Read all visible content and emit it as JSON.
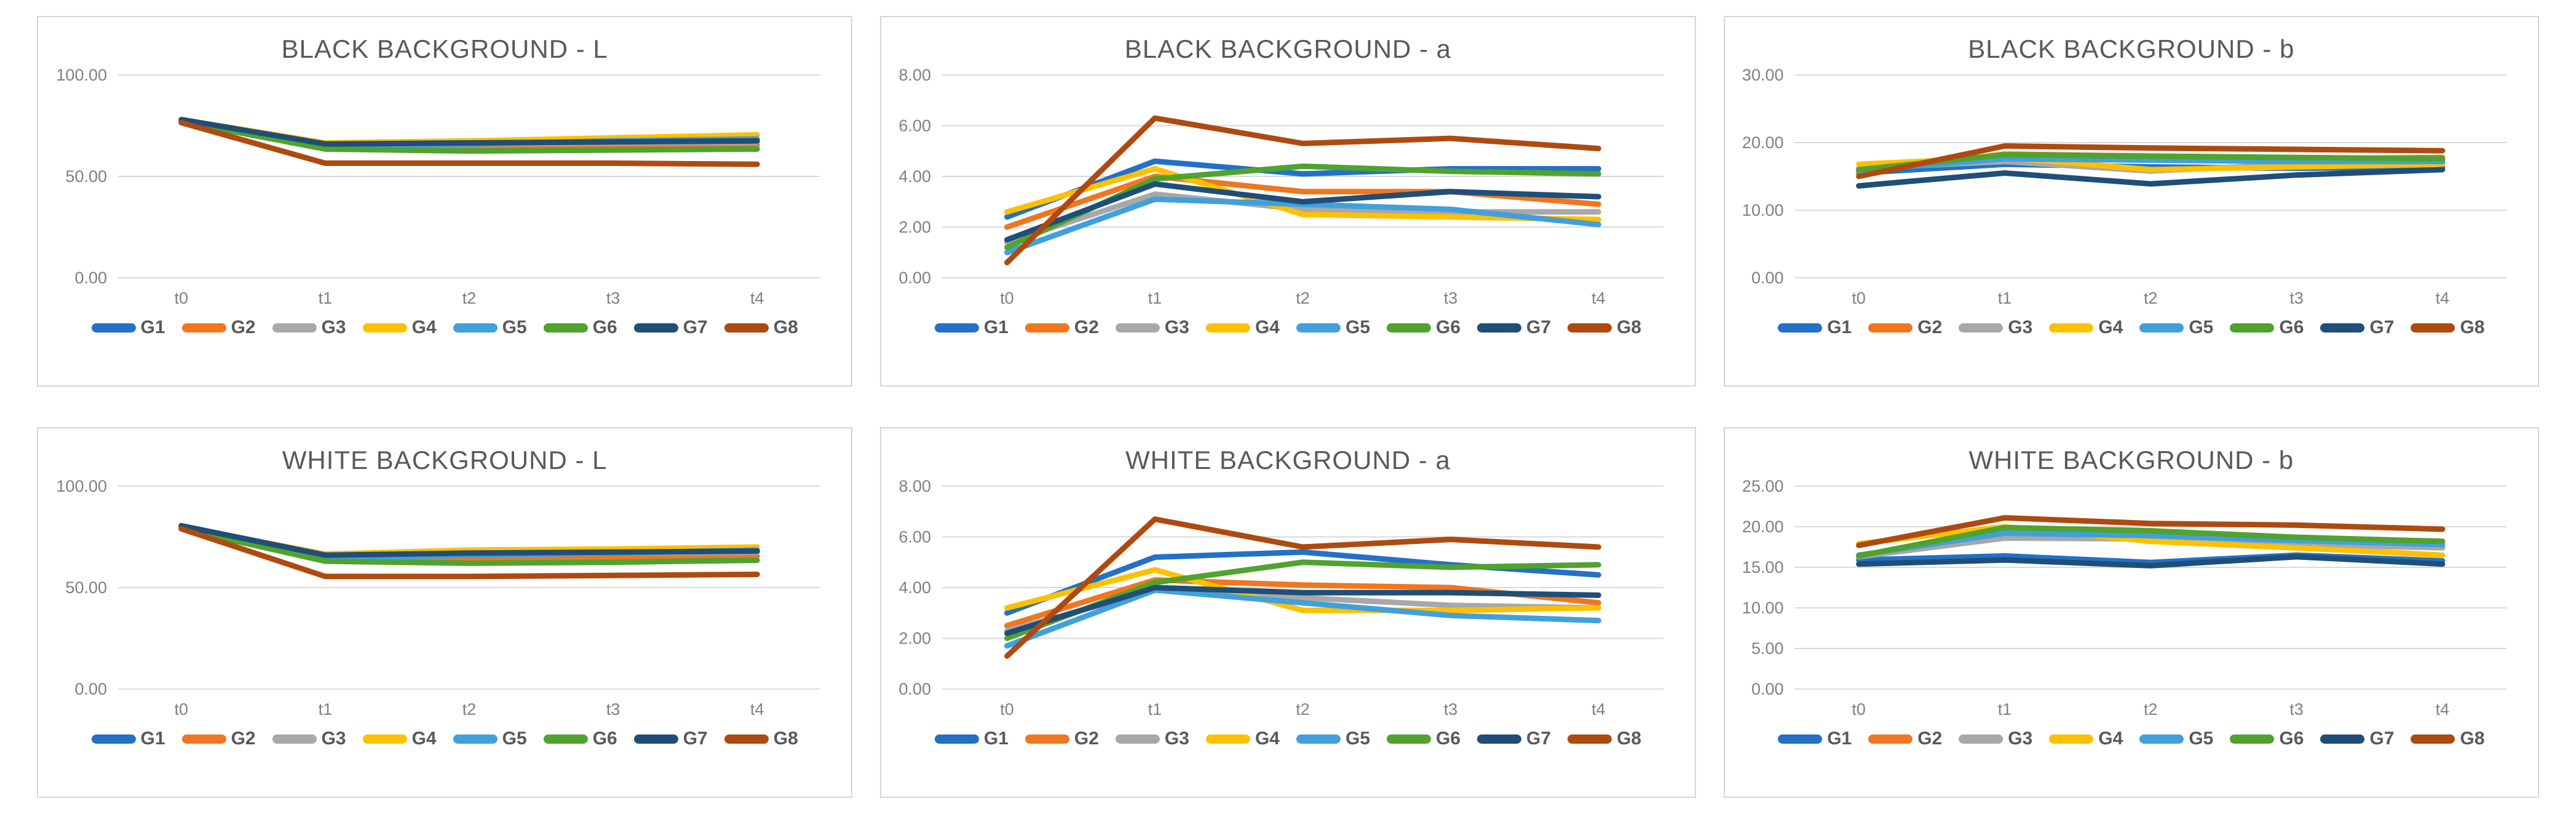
{
  "style": {
    "grid_color": "#d9d9d9",
    "tick_color": "#808080",
    "title_color": "#595959",
    "panel_border": "#d6d6d6"
  },
  "palette": {
    "G1": "#2271c7",
    "G2": "#f0761f",
    "G3": "#a8a8a8",
    "G4": "#ffc000",
    "G5": "#41a0dc",
    "G6": "#4fa32e",
    "G7": "#1f4e79",
    "G8": "#ae4a10"
  },
  "chart_data": [
    {
      "type": "line",
      "title": "BLACK BACKGROUND - L",
      "x_categories": [
        "t0",
        "t1",
        "t2",
        "t3",
        "t4"
      ],
      "ylim": [
        0,
        100
      ],
      "yticks": [
        {
          "v": 0,
          "l": "0.00"
        },
        {
          "v": 50,
          "l": "50.00"
        },
        {
          "v": 100,
          "l": "100.00"
        }
      ],
      "grid": true,
      "legend_position": "bottom",
      "series": [
        {
          "name": "G1",
          "values": [
            77.5,
            66.0,
            66.5,
            67.0,
            68.0
          ]
        },
        {
          "name": "G2",
          "values": [
            77.0,
            64.5,
            64.5,
            65.0,
            65.5
          ]
        },
        {
          "name": "G3",
          "values": [
            77.5,
            65.5,
            66.0,
            66.5,
            67.0
          ]
        },
        {
          "name": "G4",
          "values": [
            78.0,
            66.5,
            67.5,
            69.0,
            70.5
          ]
        },
        {
          "name": "G5",
          "values": [
            77.0,
            65.0,
            66.0,
            67.5,
            68.5
          ]
        },
        {
          "name": "G6",
          "values": [
            77.0,
            63.5,
            62.5,
            63.0,
            63.5
          ]
        },
        {
          "name": "G7",
          "values": [
            78.0,
            66.0,
            66.5,
            67.0,
            67.5
          ]
        },
        {
          "name": "G8",
          "values": [
            76.5,
            56.5,
            56.5,
            56.5,
            56.0
          ]
        }
      ]
    },
    {
      "type": "line",
      "title": "BLACK BACKGROUND - a",
      "x_categories": [
        "t0",
        "t1",
        "t2",
        "t3",
        "t4"
      ],
      "ylim": [
        0,
        8
      ],
      "yticks": [
        {
          "v": 0,
          "l": "0.00"
        },
        {
          "v": 2,
          "l": "2.00"
        },
        {
          "v": 4,
          "l": "4.00"
        },
        {
          "v": 6,
          "l": "6.00"
        },
        {
          "v": 8,
          "l": "8.00"
        }
      ],
      "grid": true,
      "legend_position": "bottom",
      "series": [
        {
          "name": "G1",
          "values": [
            2.4,
            4.6,
            4.1,
            4.3,
            4.3
          ]
        },
        {
          "name": "G2",
          "values": [
            2.0,
            4.0,
            3.4,
            3.4,
            2.9
          ]
        },
        {
          "name": "G3",
          "values": [
            1.4,
            3.3,
            2.7,
            2.6,
            2.6
          ]
        },
        {
          "name": "G4",
          "values": [
            2.6,
            4.3,
            2.5,
            2.4,
            2.3
          ]
        },
        {
          "name": "G5",
          "values": [
            1.0,
            3.1,
            2.9,
            2.7,
            2.1
          ]
        },
        {
          "name": "G6",
          "values": [
            1.2,
            3.9,
            4.4,
            4.2,
            4.1
          ]
        },
        {
          "name": "G7",
          "values": [
            1.5,
            3.7,
            3.0,
            3.4,
            3.2
          ]
        },
        {
          "name": "G8",
          "values": [
            0.6,
            6.3,
            5.3,
            5.5,
            5.1
          ]
        }
      ]
    },
    {
      "type": "line",
      "title": "BLACK BACKGROUND - b",
      "x_categories": [
        "t0",
        "t1",
        "t2",
        "t3",
        "t4"
      ],
      "ylim": [
        0,
        30
      ],
      "yticks": [
        {
          "v": 0,
          "l": "0.00"
        },
        {
          "v": 10,
          "l": "10.00"
        },
        {
          "v": 20,
          "l": "20.00"
        },
        {
          "v": 30,
          "l": "30.00"
        }
      ],
      "grid": true,
      "legend_position": "bottom",
      "series": [
        {
          "name": "G1",
          "values": [
            15.5,
            16.8,
            16.4,
            16.2,
            16.4
          ]
        },
        {
          "name": "G2",
          "values": [
            15.7,
            18.3,
            18.0,
            17.6,
            17.8
          ]
        },
        {
          "name": "G3",
          "values": [
            16.2,
            17.2,
            15.8,
            16.8,
            17.4
          ]
        },
        {
          "name": "G4",
          "values": [
            16.8,
            17.8,
            16.0,
            16.4,
            16.8
          ]
        },
        {
          "name": "G5",
          "values": [
            15.9,
            17.6,
            17.4,
            17.2,
            17.2
          ]
        },
        {
          "name": "G6",
          "values": [
            16.0,
            18.2,
            18.0,
            17.8,
            17.6
          ]
        },
        {
          "name": "G7",
          "values": [
            13.6,
            15.5,
            13.9,
            15.2,
            16.0
          ]
        },
        {
          "name": "G8",
          "values": [
            15.0,
            19.5,
            19.2,
            19.0,
            18.8
          ]
        }
      ]
    },
    {
      "type": "line",
      "title": "WHITE BACKGROUND - L",
      "x_categories": [
        "t0",
        "t1",
        "t2",
        "t3",
        "t4"
      ],
      "ylim": [
        0,
        100
      ],
      "yticks": [
        {
          "v": 0,
          "l": "0.00"
        },
        {
          "v": 50,
          "l": "50.00"
        },
        {
          "v": 100,
          "l": "100.00"
        }
      ],
      "grid": true,
      "legend_position": "bottom",
      "series": [
        {
          "name": "G1",
          "values": [
            80.0,
            65.5,
            67.0,
            67.5,
            68.0
          ]
        },
        {
          "name": "G2",
          "values": [
            79.5,
            64.0,
            64.5,
            65.0,
            65.5
          ]
        },
        {
          "name": "G3",
          "values": [
            80.5,
            66.0,
            66.5,
            67.0,
            67.5
          ]
        },
        {
          "name": "G4",
          "values": [
            80.0,
            66.5,
            68.5,
            69.0,
            70.0
          ]
        },
        {
          "name": "G5",
          "values": [
            79.5,
            64.5,
            66.0,
            67.0,
            68.5
          ]
        },
        {
          "name": "G6",
          "values": [
            79.0,
            63.0,
            62.0,
            62.5,
            63.5
          ]
        },
        {
          "name": "G7",
          "values": [
            80.5,
            66.0,
            67.0,
            67.5,
            68.0
          ]
        },
        {
          "name": "G8",
          "values": [
            79.0,
            55.5,
            55.5,
            56.0,
            56.5
          ]
        }
      ]
    },
    {
      "type": "line",
      "title": "WHITE BACKGROUND - a",
      "x_categories": [
        "t0",
        "t1",
        "t2",
        "t3",
        "t4"
      ],
      "ylim": [
        0,
        8
      ],
      "yticks": [
        {
          "v": 0,
          "l": "0.00"
        },
        {
          "v": 2,
          "l": "2.00"
        },
        {
          "v": 4,
          "l": "4.00"
        },
        {
          "v": 6,
          "l": "6.00"
        },
        {
          "v": 8,
          "l": "8.00"
        }
      ],
      "grid": true,
      "legend_position": "bottom",
      "series": [
        {
          "name": "G1",
          "values": [
            3.0,
            5.2,
            5.4,
            4.9,
            4.5
          ]
        },
        {
          "name": "G2",
          "values": [
            2.5,
            4.3,
            4.1,
            4.0,
            3.4
          ]
        },
        {
          "name": "G3",
          "values": [
            2.3,
            3.9,
            3.6,
            3.3,
            3.2
          ]
        },
        {
          "name": "G4",
          "values": [
            3.2,
            4.7,
            3.1,
            3.1,
            3.2
          ]
        },
        {
          "name": "G5",
          "values": [
            1.7,
            3.9,
            3.4,
            2.9,
            2.7
          ]
        },
        {
          "name": "G6",
          "values": [
            2.0,
            4.2,
            5.0,
            4.8,
            4.9
          ]
        },
        {
          "name": "G7",
          "values": [
            2.2,
            4.0,
            3.8,
            3.8,
            3.7
          ]
        },
        {
          "name": "G8",
          "values": [
            1.3,
            6.7,
            5.6,
            5.9,
            5.6
          ]
        }
      ]
    },
    {
      "type": "line",
      "title": "WHITE BACKGROUND - b",
      "x_categories": [
        "t0",
        "t1",
        "t2",
        "t3",
        "t4"
      ],
      "ylim": [
        0,
        25
      ],
      "yticks": [
        {
          "v": 0,
          "l": "0.00"
        },
        {
          "v": 5,
          "l": "5.00"
        },
        {
          "v": 10,
          "l": "10.00"
        },
        {
          "v": 15,
          "l": "15.00"
        },
        {
          "v": 20,
          "l": "20.00"
        },
        {
          "v": 25,
          "l": "25.00"
        }
      ],
      "grid": true,
      "legend_position": "bottom",
      "series": [
        {
          "name": "G1",
          "values": [
            15.9,
            16.4,
            15.6,
            16.5,
            15.8
          ]
        },
        {
          "name": "G2",
          "values": [
            16.4,
            19.0,
            19.3,
            18.5,
            17.6
          ]
        },
        {
          "name": "G3",
          "values": [
            16.3,
            18.6,
            18.5,
            17.8,
            17.4
          ]
        },
        {
          "name": "G4",
          "values": [
            17.9,
            20.0,
            18.2,
            17.4,
            16.5
          ]
        },
        {
          "name": "G5",
          "values": [
            16.5,
            19.2,
            18.9,
            18.3,
            17.8
          ]
        },
        {
          "name": "G6",
          "values": [
            16.4,
            19.9,
            19.5,
            18.7,
            18.2
          ]
        },
        {
          "name": "G7",
          "values": [
            15.4,
            15.9,
            15.2,
            16.3,
            15.4
          ]
        },
        {
          "name": "G8",
          "values": [
            17.7,
            21.1,
            20.4,
            20.2,
            19.7
          ]
        }
      ]
    }
  ]
}
